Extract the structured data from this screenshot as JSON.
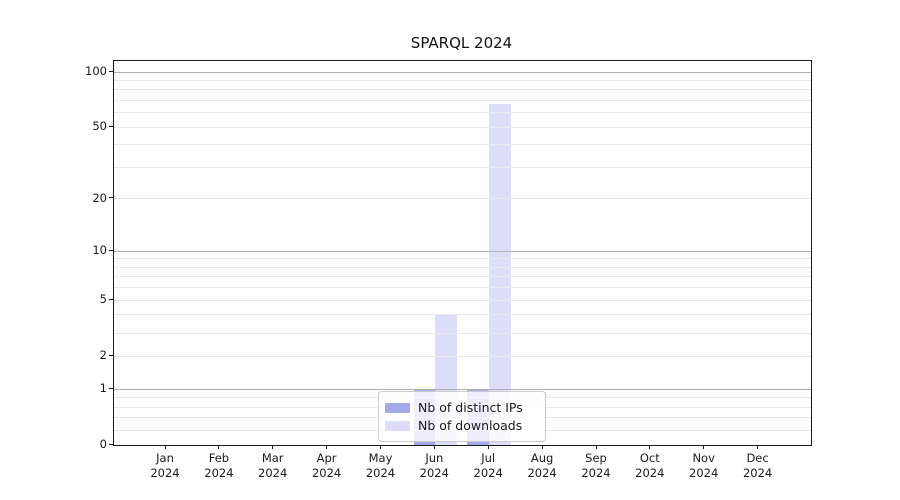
{
  "title": "SPARQL 2024",
  "chart_data": {
    "type": "bar",
    "title": "SPARQL 2024",
    "categories": [
      "Jan 2024",
      "Feb 2024",
      "Mar 2024",
      "Apr 2024",
      "May 2024",
      "Jun 2024",
      "Jul 2024",
      "Aug 2024",
      "Sep 2024",
      "Oct 2024",
      "Nov 2024",
      "Dec 2024"
    ],
    "series": [
      {
        "name": "Nb of distinct IPs",
        "color": "#a2a9e8",
        "values": [
          0,
          0,
          0,
          0,
          0,
          1,
          1,
          0,
          0,
          0,
          0,
          0
        ]
      },
      {
        "name": "Nb of downloads",
        "color": "#dcddf9",
        "values": [
          0,
          0,
          0,
          0,
          0,
          4,
          67,
          0,
          0,
          0,
          0,
          0
        ]
      }
    ],
    "xlabel": "",
    "ylabel": "",
    "yscale": "log1p",
    "ylim": [
      0,
      114
    ],
    "yticks": [
      0,
      1,
      2,
      5,
      10,
      20,
      50,
      100
    ],
    "y_major_grid": [
      1,
      10,
      100
    ],
    "y_minor_grid": [
      0.2,
      0.4,
      0.6,
      0.8,
      2,
      3,
      4,
      5,
      6,
      7,
      8,
      9,
      20,
      30,
      40,
      50,
      60,
      70,
      80,
      90
    ],
    "legend_position": "lower center",
    "grid": "on",
    "colors": {
      "major_grid": "#b2b2b2",
      "minor_grid": "#e9e9e9",
      "spine": "#1a1a1a",
      "text": "#1a1a1a",
      "background": "#ffffff"
    }
  }
}
